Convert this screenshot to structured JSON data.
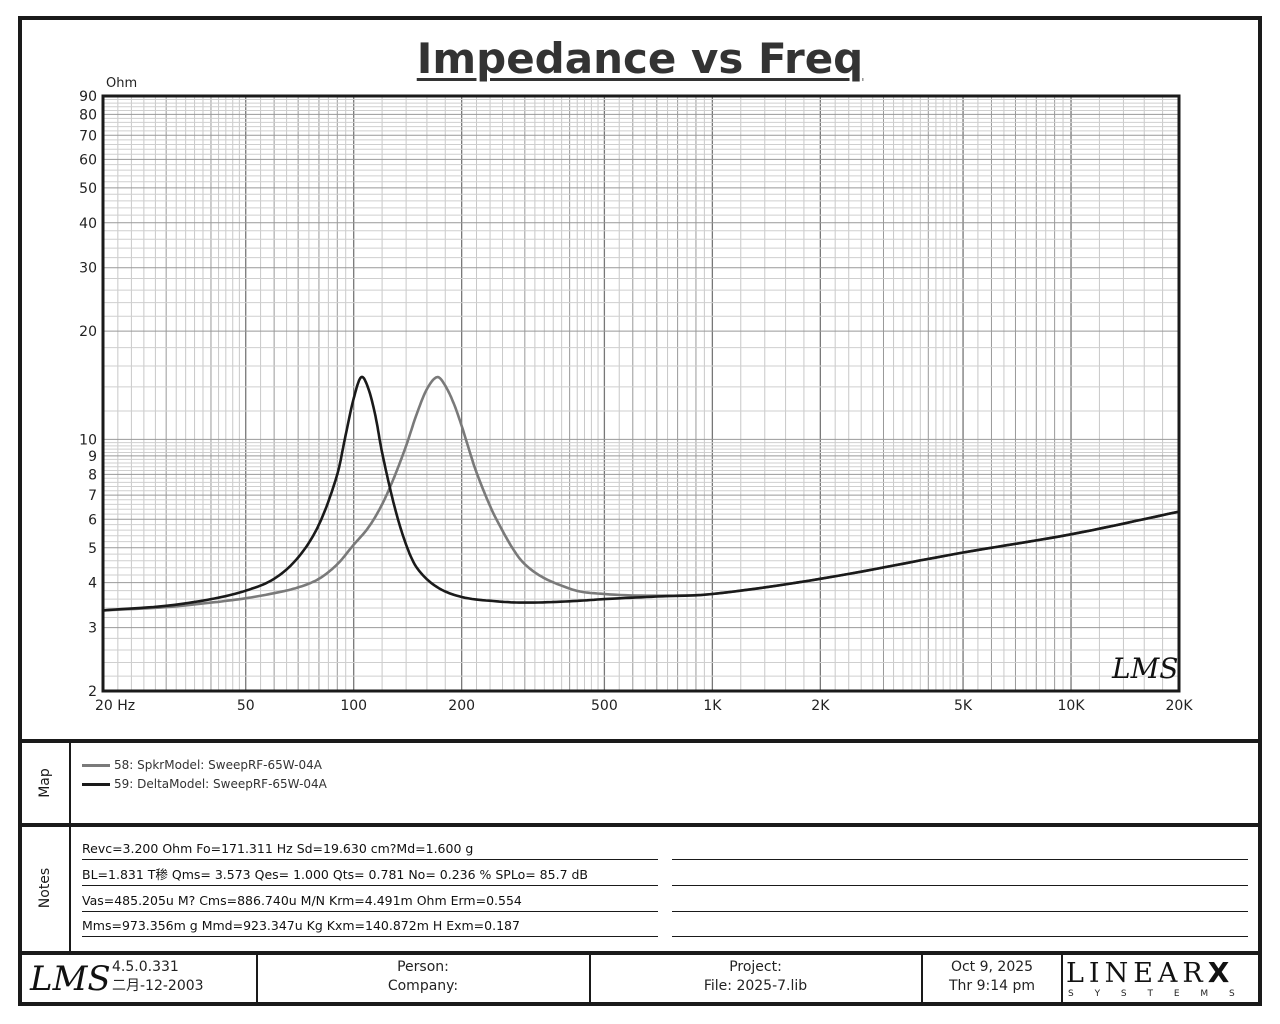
{
  "chart_data": {
    "type": "line",
    "title": "Impedance vs Freq",
    "ylabel": "Ohm",
    "xscale": "log",
    "yscale": "log",
    "xlim": [
      20,
      20000
    ],
    "ylim": [
      2,
      90
    ],
    "grid": true,
    "legend_placement": "panel below chart",
    "x_tick_labels": [
      "20  Hz",
      "50",
      "100",
      "200",
      "500",
      "1K",
      "2K",
      "5K",
      "10K",
      "20K"
    ],
    "x_tick_values": [
      20,
      50,
      100,
      200,
      500,
      1000,
      2000,
      5000,
      10000,
      20000
    ],
    "y_tick_labels": [
      "2",
      "3",
      "4",
      "5",
      "6",
      "7",
      "8",
      "9",
      "10",
      "20",
      "30",
      "40",
      "50",
      "60",
      "70",
      "80",
      "90"
    ],
    "y_tick_values": [
      2,
      3,
      4,
      5,
      6,
      7,
      8,
      9,
      10,
      20,
      30,
      40,
      50,
      60,
      70,
      80,
      90
    ],
    "series": [
      {
        "name": "58: SpkrModel: SweepRF-65W-04A",
        "color": "#7a7a7a",
        "x": [
          20,
          30,
          40,
          50,
          60,
          70,
          80,
          90,
          100,
          110,
          120,
          130,
          140,
          150,
          160,
          171,
          180,
          190,
          200,
          220,
          250,
          300,
          400,
          500,
          700,
          1000,
          2000,
          5000,
          10000,
          20000
        ],
        "y": [
          3.35,
          3.42,
          3.52,
          3.62,
          3.74,
          3.88,
          4.1,
          4.5,
          5.1,
          5.7,
          6.6,
          7.9,
          9.6,
          11.8,
          13.8,
          14.9,
          14.1,
          12.6,
          10.9,
          8.1,
          6.0,
          4.5,
          3.85,
          3.72,
          3.68,
          3.72,
          4.1,
          4.85,
          5.45,
          6.3
        ]
      },
      {
        "name": "59: DeltaModel: SweepRF-65W-04A",
        "color": "#1a1a1a",
        "x": [
          20,
          30,
          40,
          50,
          60,
          70,
          80,
          90,
          95,
          100,
          105,
          110,
          115,
          120,
          130,
          140,
          150,
          170,
          200,
          250,
          300,
          400,
          500,
          700,
          1000,
          2000,
          5000,
          10000,
          20000
        ],
        "y": [
          3.35,
          3.45,
          3.6,
          3.8,
          4.1,
          4.7,
          5.8,
          8.0,
          10.3,
          13.0,
          14.9,
          13.8,
          11.6,
          9.2,
          6.5,
          5.1,
          4.4,
          3.9,
          3.65,
          3.55,
          3.52,
          3.55,
          3.6,
          3.66,
          3.72,
          4.1,
          4.85,
          5.45,
          6.3
        ]
      }
    ]
  },
  "plot_watermark": "LMS",
  "panels": {
    "map_label": "Map",
    "notes_label": "Notes"
  },
  "notes": [
    "Revc=3.200 Ohm  Fo=171.311 Hz  Sd=19.630 cm?Md=1.600 g",
    "BL=1.831 T䅟  Qms= 3.573  Qes= 1.000  Qts= 0.781  No= 0.236 %  SPLo= 85.7 dB",
    "Vas=485.205u M? Cms=886.740u M/N  Krm=4.491m Ohm  Erm=0.554",
    "Mms=973.356m g  Mmd=923.347u Kg  Kxm=140.872m H  Exm=0.187"
  ],
  "footer": {
    "logo": "LMS",
    "version": "4.5.0.331",
    "build_date": "二月-12-2003",
    "person_label": "Person:",
    "company_label": "Company:",
    "project_label": "Project:",
    "file_label": "File: 2025-7.lib",
    "date": "Oct  9, 2025",
    "time": "Thr  9:14 pm",
    "brand_top": "LINEAR",
    "brand_x": "X",
    "brand_bottom": "S Y S T E M S"
  }
}
